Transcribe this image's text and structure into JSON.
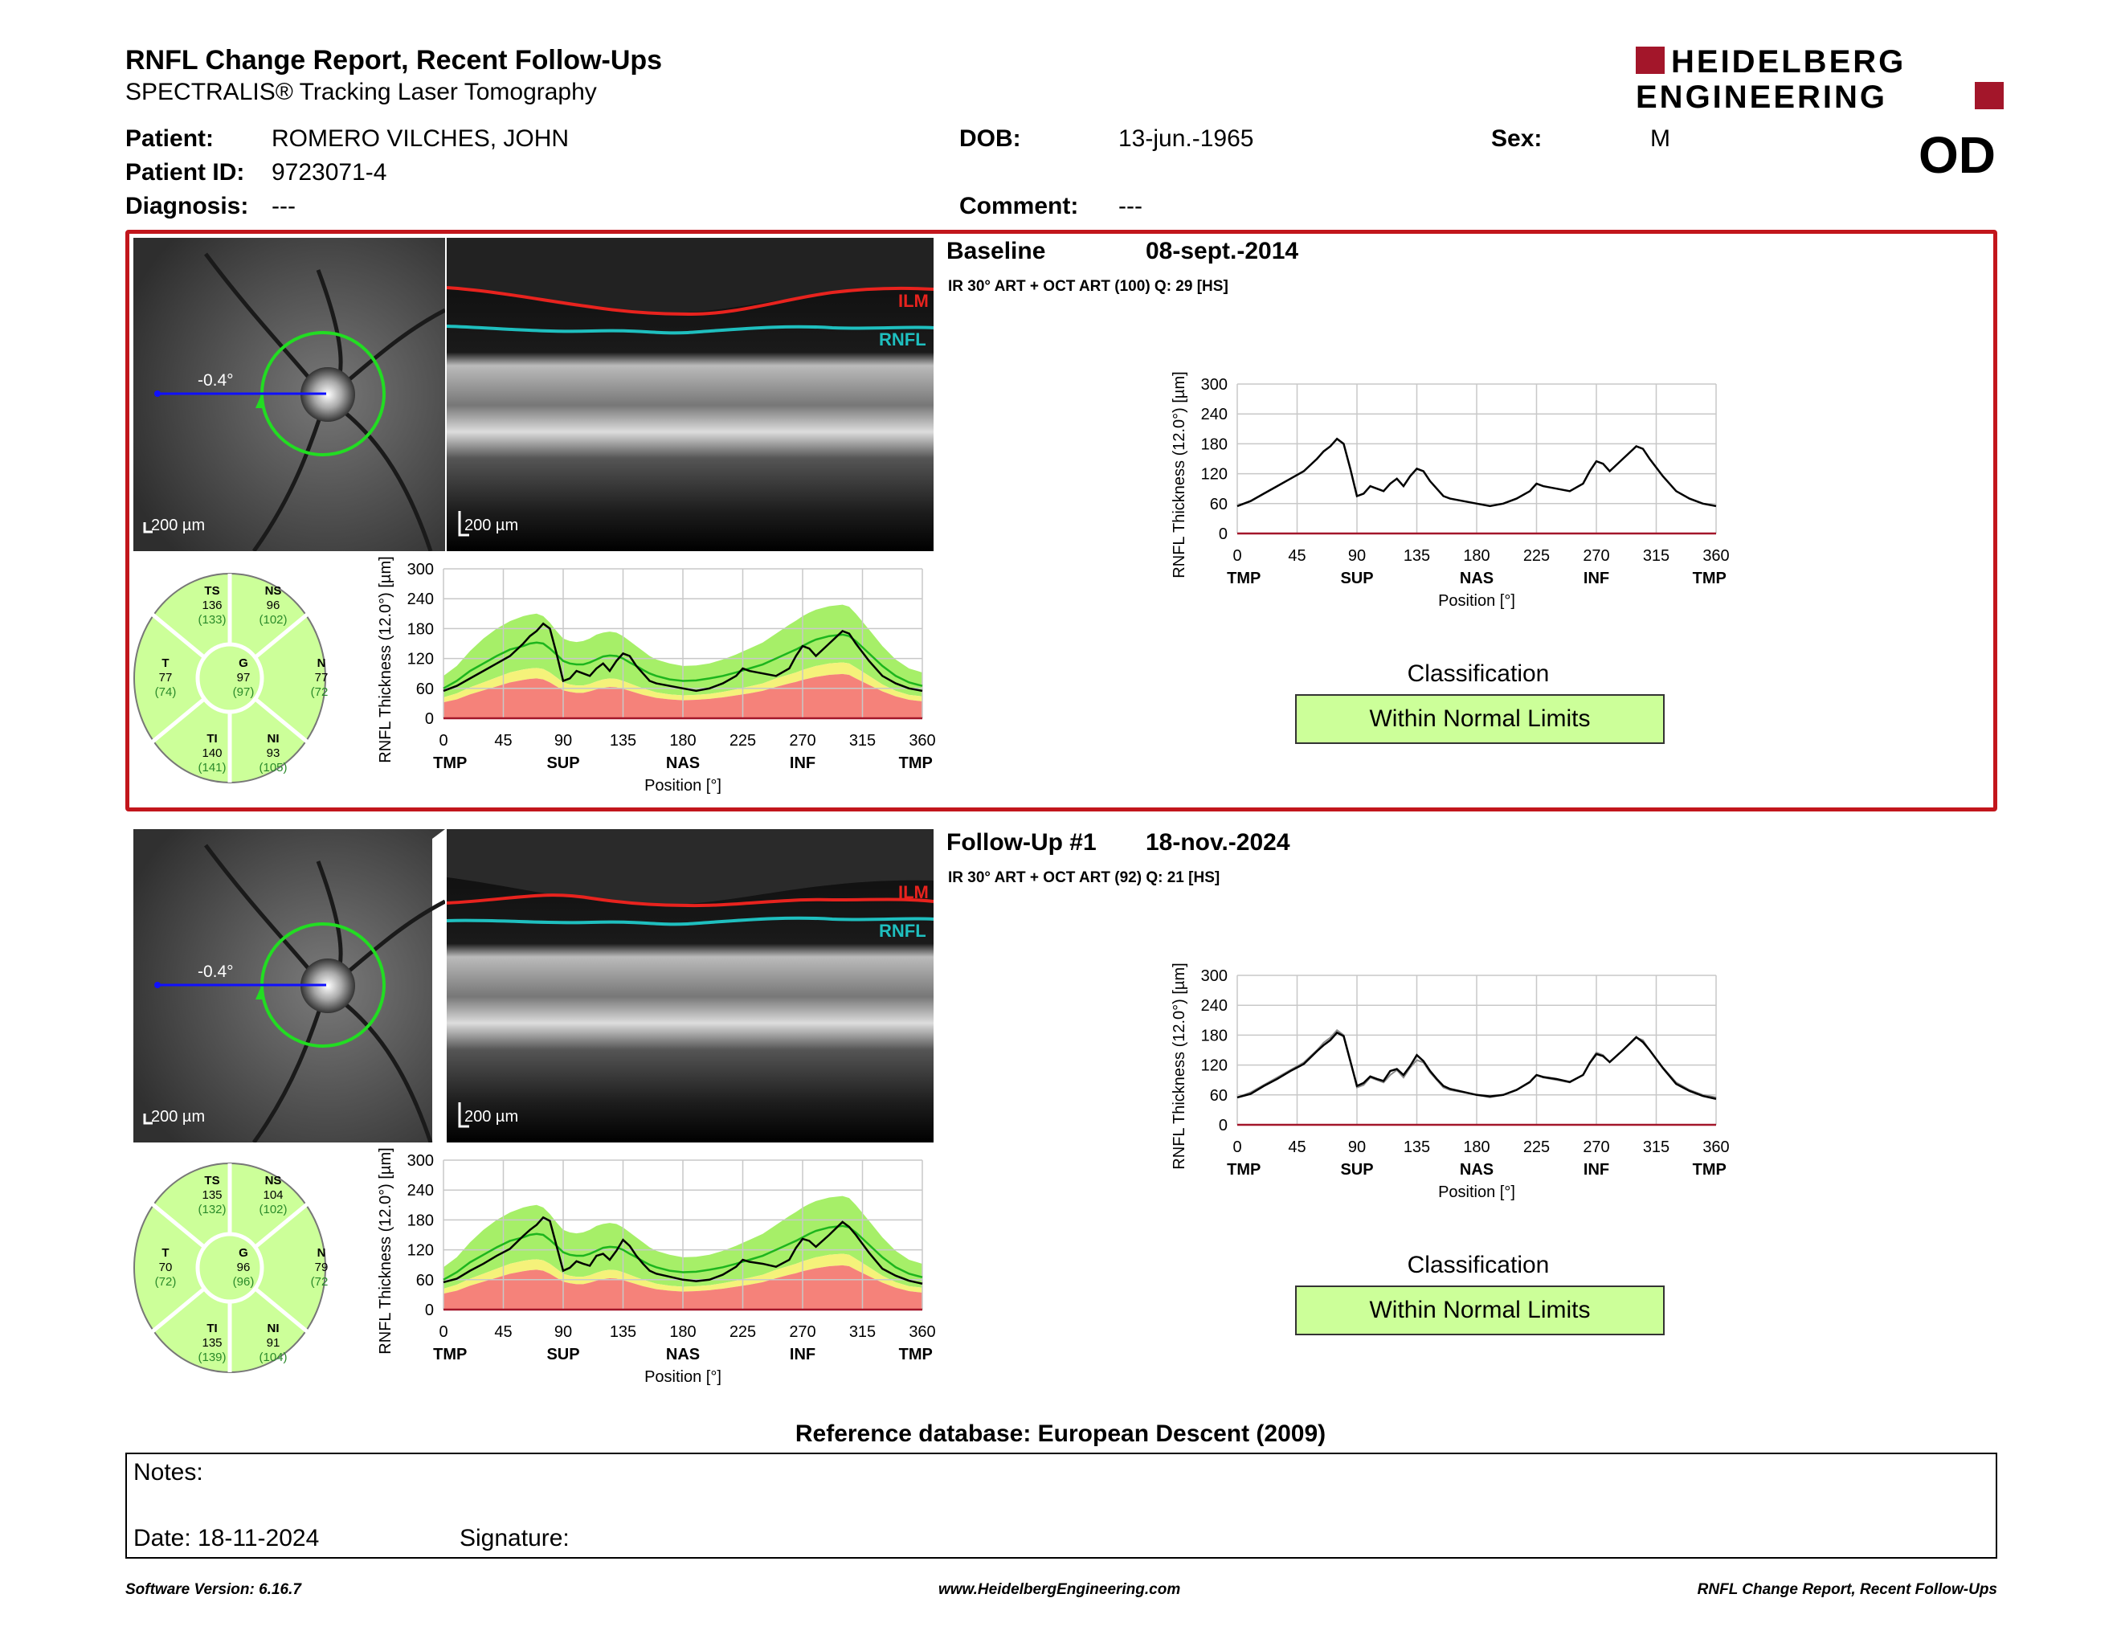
{
  "header": {
    "title": "RNFL Change Report, Recent Follow-Ups",
    "subtitle": "SPECTRALIS® Tracking Laser Tomography",
    "logo_line1": "HEIDELBERG",
    "logo_line2": "ENGINEERING",
    "eye": "OD"
  },
  "patient": {
    "name_label": "Patient:",
    "name": "ROMERO VILCHES, JOHN",
    "id_label": "Patient ID:",
    "id": "9723071-4",
    "diagnosis_label": "Diagnosis:",
    "diagnosis": "---",
    "dob_label": "DOB:",
    "dob": "13-jun.-1965",
    "comment_label": "Comment:",
    "comment": "---",
    "sex_label": "Sex:",
    "sex": "M"
  },
  "colors": {
    "frame": "#c2161c",
    "normal": "#ccff99",
    "green_line": "#1db51d",
    "ilm": "#e8231e",
    "rnfl": "#1fbfbf"
  },
  "baseline": {
    "title": "Baseline",
    "date": "08-sept.-2014",
    "scan_info": "IR 30° ART + OCT ART (100) Q: 29 [HS]",
    "angle": "-0.4°",
    "scale_fundus": "200 µm",
    "scale_oct": "200 µm",
    "ilm_label": "ILM",
    "rnfl_label": "RNFL",
    "sectors": {
      "TS": {
        "label": "TS",
        "value": "136",
        "ref": "(133)"
      },
      "NS": {
        "label": "NS",
        "value": "96",
        "ref": "(102)"
      },
      "T": {
        "label": "T",
        "value": "77",
        "ref": "(74)"
      },
      "G": {
        "label": "G",
        "value": "97",
        "ref": "(97)"
      },
      "N": {
        "label": "N",
        "value": "77",
        "ref": "(72)"
      },
      "TI": {
        "label": "TI",
        "value": "140",
        "ref": "(141)"
      },
      "NI": {
        "label": "NI",
        "value": "93",
        "ref": "(105)"
      }
    },
    "classification_label": "Classification",
    "classification": "Within Normal Limits"
  },
  "followup": {
    "title": "Follow-Up #1",
    "date": "18-nov.-2024",
    "scan_info": "IR 30° ART + OCT ART (92) Q: 21 [HS]",
    "angle": "-0.4°",
    "scale_fundus": "200 µm",
    "scale_oct": "200 µm",
    "ilm_label": "ILM",
    "rnfl_label": "RNFL",
    "sectors": {
      "TS": {
        "label": "TS",
        "value": "135",
        "ref": "(132)"
      },
      "NS": {
        "label": "NS",
        "value": "104",
        "ref": "(102)"
      },
      "T": {
        "label": "T",
        "value": "70",
        "ref": "(72)"
      },
      "G": {
        "label": "G",
        "value": "96",
        "ref": "(96)"
      },
      "N": {
        "label": "N",
        "value": "79",
        "ref": "(72)"
      },
      "TI": {
        "label": "TI",
        "value": "135",
        "ref": "(139)"
      },
      "NI": {
        "label": "NI",
        "value": "91",
        "ref": "(104)"
      }
    },
    "classification_label": "Classification",
    "classification": "Within Normal Limits"
  },
  "chart_data": [
    {
      "id": "profile",
      "type": "line",
      "ylabel": "RNFL Thickness (12.0°) [µm]",
      "xlabel": "Position [°]",
      "ylim": [
        0,
        300
      ],
      "xlim": [
        0,
        360
      ],
      "yticks": [
        0,
        60,
        120,
        180,
        240,
        300
      ],
      "xticks": [
        0,
        45,
        90,
        135,
        180,
        225,
        270,
        315,
        360
      ],
      "sector_labels": [
        {
          "x": 5,
          "label": "TMP"
        },
        {
          "x": 45,
          "label": ""
        },
        {
          "x": 90,
          "label": "SUP"
        },
        {
          "x": 135,
          "label": ""
        },
        {
          "x": 180,
          "label": "NAS"
        },
        {
          "x": 225,
          "label": ""
        },
        {
          "x": 270,
          "label": "INF"
        },
        {
          "x": 315,
          "label": ""
        },
        {
          "x": 355,
          "label": "TMP"
        }
      ],
      "x": [
        0,
        10,
        20,
        30,
        40,
        50,
        60,
        65,
        70,
        75,
        80,
        85,
        90,
        95,
        100,
        105,
        110,
        115,
        120,
        125,
        130,
        135,
        140,
        145,
        150,
        155,
        160,
        170,
        180,
        190,
        200,
        210,
        220,
        225,
        230,
        240,
        250,
        260,
        265,
        270,
        275,
        280,
        290,
        300,
        305,
        310,
        320,
        330,
        340,
        350,
        360
      ],
      "series": [
        {
          "values": [
            55,
            65,
            80,
            95,
            110,
            125,
            150,
            165,
            175,
            190,
            180,
            130,
            75,
            80,
            95,
            90,
            85,
            100,
            110,
            95,
            115,
            130,
            125,
            105,
            90,
            75,
            70,
            65,
            60,
            55,
            60,
            70,
            85,
            100,
            95,
            90,
            85,
            100,
            125,
            145,
            140,
            125,
            150,
            175,
            170,
            150,
            115,
            85,
            70,
            60,
            55
          ]
        },
        {
          "values": [
            55,
            62,
            78,
            92,
            108,
            122,
            148,
            160,
            170,
            185,
            178,
            128,
            78,
            84,
            97,
            92,
            88,
            108,
            112,
            100,
            118,
            140,
            128,
            108,
            92,
            78,
            72,
            66,
            60,
            57,
            60,
            70,
            86,
            100,
            96,
            92,
            86,
            100,
            124,
            142,
            138,
            126,
            150,
            176,
            166,
            150,
            114,
            82,
            68,
            58,
            52
          ]
        }
      ],
      "normal_mean": [
        60,
        75,
        95,
        110,
        125,
        138,
        145,
        150,
        152,
        150,
        140,
        128,
        115,
        110,
        108,
        108,
        112,
        118,
        124,
        126,
        125,
        120,
        112,
        105,
        97,
        90,
        85,
        78,
        75,
        76,
        80,
        85,
        92,
        96,
        100,
        108,
        120,
        132,
        138,
        145,
        152,
        158,
        165,
        168,
        165,
        155,
        130,
        105,
        85,
        72,
        65
      ],
      "band_normal_upper": [
        85,
        105,
        135,
        160,
        180,
        195,
        205,
        208,
        210,
        205,
        192,
        175,
        160,
        155,
        153,
        155,
        160,
        168,
        172,
        174,
        172,
        165,
        155,
        145,
        135,
        125,
        118,
        110,
        105,
        106,
        110,
        118,
        128,
        134,
        140,
        152,
        170,
        188,
        196,
        205,
        212,
        218,
        225,
        228,
        224,
        210,
        178,
        145,
        118,
        100,
        92
      ],
      "band_normal_lower": [
        42,
        50,
        62,
        72,
        82,
        92,
        98,
        100,
        101,
        99,
        92,
        82,
        72,
        68,
        66,
        66,
        69,
        74,
        78,
        80,
        79,
        75,
        70,
        65,
        60,
        56,
        52,
        48,
        46,
        47,
        49,
        53,
        58,
        61,
        64,
        70,
        80,
        88,
        92,
        97,
        101,
        105,
        110,
        112,
        110,
        102,
        85,
        68,
        55,
        47,
        44
      ],
      "band_borderline_lower": [
        32,
        38,
        48,
        56,
        64,
        72,
        77,
        79,
        80,
        78,
        72,
        64,
        56,
        53,
        51,
        51,
        54,
        58,
        61,
        63,
        62,
        59,
        55,
        51,
        47,
        44,
        41,
        38,
        36,
        37,
        39,
        42,
        46,
        48,
        50,
        55,
        63,
        70,
        73,
        77,
        80,
        83,
        87,
        89,
        87,
        80,
        67,
        54,
        44,
        37,
        34
      ]
    }
  ],
  "reference": "Reference database: European Descent (2009)",
  "notes": {
    "notes_label": "Notes:",
    "date_label": "Date: 18-11-2024",
    "signature_label": "Signature:"
  },
  "footer": {
    "software": "Software Version: 6.16.7",
    "website": "www.HeidelbergEngineering.com",
    "report": "RNFL Change Report, Recent Follow-Ups"
  }
}
